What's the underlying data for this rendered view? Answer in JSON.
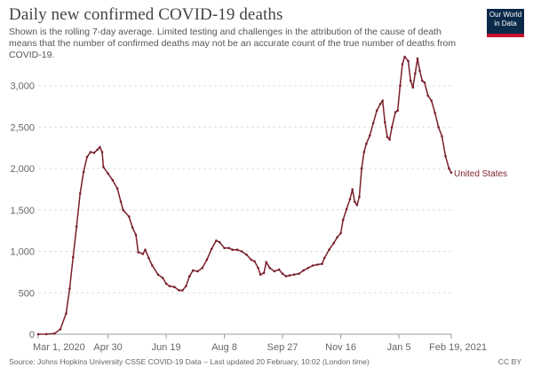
{
  "header": {
    "title": "Daily new confirmed COVID-19 deaths",
    "subtitle": "Shown is the rolling 7-day average. Limited testing and challenges in the attribution of the cause of death means that the number of confirmed deaths may not be an accurate count of the true number of deaths from COVID-19."
  },
  "logo": {
    "line1": "Our World",
    "line2": "in Data",
    "bg_color": "#0b2a4a",
    "accent_color": "#c8102e"
  },
  "footer": {
    "source": "Source: Johns Hopkins University CSSE COVID-19 Data – Last updated 20 February, 10:02 (London time)",
    "license": "CC BY"
  },
  "chart_data": {
    "type": "line",
    "x_unit": "date",
    "xlim": [
      "2020-03-01",
      "2021-02-19"
    ],
    "ylim": [
      0,
      3500
    ],
    "grid": true,
    "y_ticks": [
      0,
      500,
      1000,
      1500,
      2000,
      2500,
      3000
    ],
    "y_tick_labels": [
      "0",
      "500",
      "1,000",
      "1,500",
      "2,000",
      "2,500",
      "3,000"
    ],
    "x_ticks": [
      "2020-03-01",
      "2020-04-30",
      "2020-06-19",
      "2020-08-08",
      "2020-09-27",
      "2020-11-16",
      "2021-01-05",
      "2021-02-19"
    ],
    "x_tick_labels": [
      "Mar 1, 2020",
      "Apr 30",
      "Jun 19",
      "Aug 8",
      "Sep 27",
      "Nov 16",
      "Jan 5",
      "Feb 19, 2021"
    ],
    "series": [
      {
        "name": "United States",
        "color": "#7a1f2b",
        "points": [
          [
            "2020-03-01",
            0
          ],
          [
            "2020-03-08",
            1
          ],
          [
            "2020-03-15",
            8
          ],
          [
            "2020-03-20",
            60
          ],
          [
            "2020-03-25",
            250
          ],
          [
            "2020-03-28",
            550
          ],
          [
            "2020-03-31",
            930
          ],
          [
            "2020-04-03",
            1300
          ],
          [
            "2020-04-06",
            1700
          ],
          [
            "2020-04-09",
            1960
          ],
          [
            "2020-04-12",
            2140
          ],
          [
            "2020-04-15",
            2200
          ],
          [
            "2020-04-18",
            2190
          ],
          [
            "2020-04-21",
            2230
          ],
          [
            "2020-04-23",
            2260
          ],
          [
            "2020-04-25",
            2200
          ],
          [
            "2020-04-26",
            2020
          ],
          [
            "2020-04-30",
            1940
          ],
          [
            "2020-05-04",
            1860
          ],
          [
            "2020-05-08",
            1760
          ],
          [
            "2020-05-11",
            1600
          ],
          [
            "2020-05-13",
            1500
          ],
          [
            "2020-05-18",
            1420
          ],
          [
            "2020-05-21",
            1290
          ],
          [
            "2020-05-24",
            1200
          ],
          [
            "2020-05-26",
            990
          ],
          [
            "2020-05-30",
            970
          ],
          [
            "2020-06-01",
            1020
          ],
          [
            "2020-06-04",
            920
          ],
          [
            "2020-06-07",
            830
          ],
          [
            "2020-06-12",
            720
          ],
          [
            "2020-06-16",
            680
          ],
          [
            "2020-06-19",
            610
          ],
          [
            "2020-06-22",
            580
          ],
          [
            "2020-06-26",
            570
          ],
          [
            "2020-06-30",
            530
          ],
          [
            "2020-07-03",
            530
          ],
          [
            "2020-07-06",
            580
          ],
          [
            "2020-07-09",
            700
          ],
          [
            "2020-07-12",
            770
          ],
          [
            "2020-07-16",
            760
          ],
          [
            "2020-07-20",
            800
          ],
          [
            "2020-07-24",
            900
          ],
          [
            "2020-07-28",
            1030
          ],
          [
            "2020-08-01",
            1130
          ],
          [
            "2020-08-04",
            1110
          ],
          [
            "2020-08-08",
            1040
          ],
          [
            "2020-08-12",
            1040
          ],
          [
            "2020-08-15",
            1020
          ],
          [
            "2020-08-19",
            1020
          ],
          [
            "2020-08-23",
            1000
          ],
          [
            "2020-08-27",
            960
          ],
          [
            "2020-08-31",
            900
          ],
          [
            "2020-09-03",
            880
          ],
          [
            "2020-09-06",
            800
          ],
          [
            "2020-09-08",
            720
          ],
          [
            "2020-09-11",
            740
          ],
          [
            "2020-09-13",
            870
          ],
          [
            "2020-09-16",
            800
          ],
          [
            "2020-09-20",
            760
          ],
          [
            "2020-09-24",
            780
          ],
          [
            "2020-09-27",
            730
          ],
          [
            "2020-09-30",
            700
          ],
          [
            "2020-10-03",
            710
          ],
          [
            "2020-10-07",
            720
          ],
          [
            "2020-10-11",
            730
          ],
          [
            "2020-10-15",
            770
          ],
          [
            "2020-10-19",
            800
          ],
          [
            "2020-10-23",
            830
          ],
          [
            "2020-10-27",
            840
          ],
          [
            "2020-10-31",
            850
          ],
          [
            "2020-11-02",
            920
          ],
          [
            "2020-11-06",
            1020
          ],
          [
            "2020-11-10",
            1100
          ],
          [
            "2020-11-13",
            1170
          ],
          [
            "2020-11-16",
            1220
          ],
          [
            "2020-11-18",
            1380
          ],
          [
            "2020-11-21",
            1510
          ],
          [
            "2020-11-24",
            1630
          ],
          [
            "2020-11-26",
            1750
          ],
          [
            "2020-11-28",
            1600
          ],
          [
            "2020-11-30",
            1560
          ],
          [
            "2020-12-02",
            1660
          ],
          [
            "2020-12-04",
            2000
          ],
          [
            "2020-12-06",
            2200
          ],
          [
            "2020-12-08",
            2300
          ],
          [
            "2020-12-11",
            2400
          ],
          [
            "2020-12-14",
            2550
          ],
          [
            "2020-12-17",
            2700
          ],
          [
            "2020-12-20",
            2780
          ],
          [
            "2020-12-22",
            2820
          ],
          [
            "2020-12-24",
            2560
          ],
          [
            "2020-12-26",
            2380
          ],
          [
            "2020-12-28",
            2350
          ],
          [
            "2020-12-30",
            2500
          ],
          [
            "2021-01-02",
            2680
          ],
          [
            "2021-01-04",
            2700
          ],
          [
            "2021-01-06",
            3000
          ],
          [
            "2021-01-08",
            3260
          ],
          [
            "2021-01-10",
            3350
          ],
          [
            "2021-01-13",
            3300
          ],
          [
            "2021-01-15",
            3060
          ],
          [
            "2021-01-17",
            2980
          ],
          [
            "2021-01-19",
            3150
          ],
          [
            "2021-01-21",
            3330
          ],
          [
            "2021-01-23",
            3180
          ],
          [
            "2021-01-25",
            3060
          ],
          [
            "2021-01-27",
            3040
          ],
          [
            "2021-01-30",
            2880
          ],
          [
            "2021-02-02",
            2820
          ],
          [
            "2021-02-05",
            2670
          ],
          [
            "2021-02-08",
            2500
          ],
          [
            "2021-02-11",
            2390
          ],
          [
            "2021-02-14",
            2150
          ],
          [
            "2021-02-17",
            2000
          ],
          [
            "2021-02-19",
            1950
          ]
        ]
      }
    ]
  }
}
